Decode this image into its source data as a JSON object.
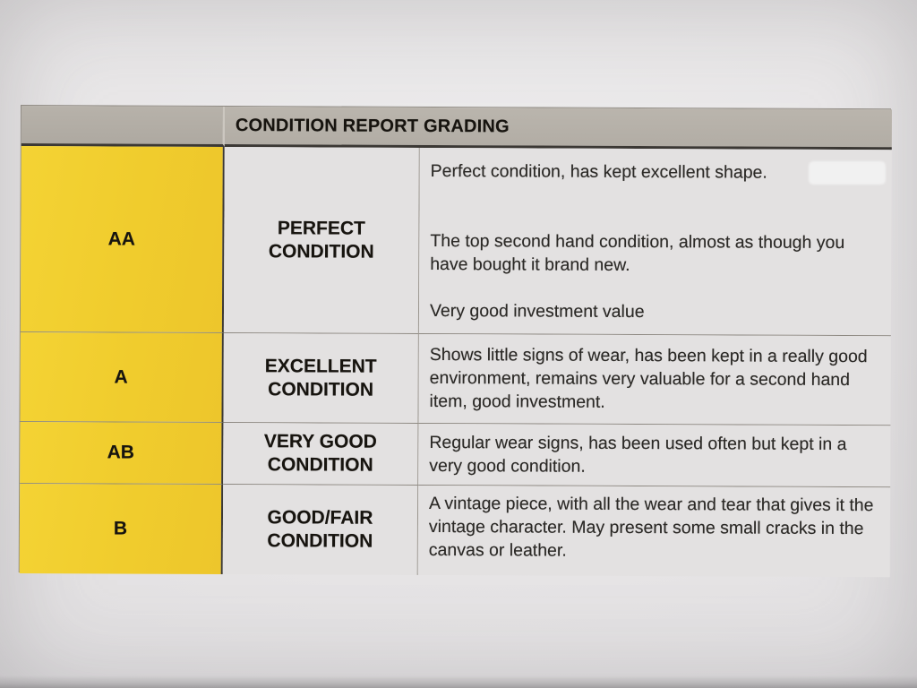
{
  "header": {
    "title": "CONDITION REPORT GRADING"
  },
  "rows": [
    {
      "grade": "AA",
      "condition": "PERFECT CONDITION",
      "paragraphs": [
        "Perfect condition, has kept excellent shape.",
        "The top second hand condition, almost as though you have bought it brand new.",
        "Very good investment value"
      ]
    },
    {
      "grade": "A",
      "condition": "EXCELLENT CONDITION",
      "paragraphs": [
        "Shows little signs of wear, has been kept in a really good environment, remains very valuable for a second hand item, good investment."
      ]
    },
    {
      "grade": "AB",
      "condition": "VERY GOOD CONDITION",
      "paragraphs": [
        "Regular wear signs, has been used often but kept in a very good condition."
      ]
    },
    {
      "grade": "B",
      "condition": "GOOD/FAIR CONDITION",
      "paragraphs": [
        "A vintage piece, with all the wear and tear that gives it the vintage character. May present some small cracks in the canvas or leather."
      ]
    }
  ],
  "colors": {
    "grade_cell_yellow": "#f0cc2d",
    "header_gray": "#b5b0a8",
    "cell_background": "#e3e1e1",
    "border_dark": "#3b3834",
    "border_light": "#8d8881"
  }
}
